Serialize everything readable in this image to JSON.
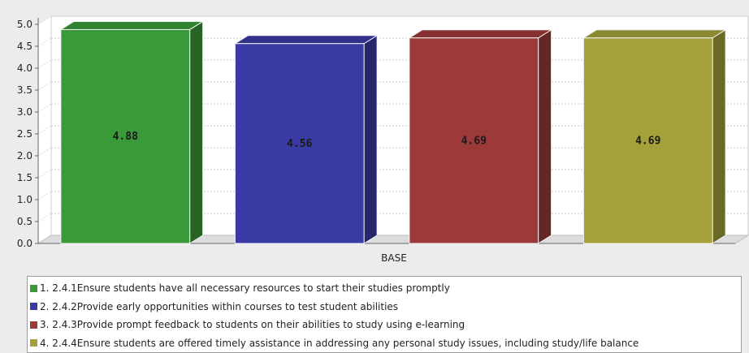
{
  "chart_data": {
    "type": "bar",
    "xlabel": "BASE",
    "ylim": [
      0,
      5
    ],
    "yticks": [
      "0.0",
      "0.5",
      "1.0",
      "1.5",
      "2.0",
      "2.5",
      "3.0",
      "3.5",
      "4.0",
      "4.5",
      "5.0"
    ],
    "grid": true,
    "legend_position": "bottom",
    "categories": [
      "BASE"
    ],
    "series": [
      {
        "name": "1. 2.4.1Ensure students have all necessary resources to start their studies promptly",
        "value": 4.88,
        "label": "4.88",
        "color": "#3a9a3a"
      },
      {
        "name": "2. 2.4.2Provide early opportunities within courses to test student abilities",
        "value": 4.56,
        "label": "4.56",
        "color": "#3a3aa4"
      },
      {
        "name": "3. 2.4.3Provide prompt feedback to students on their abilities to study using e-learning",
        "value": 4.69,
        "label": "4.69",
        "color": "#9c3a3a"
      },
      {
        "name": "4. 2.4.4Ensure students are offered timely assistance in addressing any personal study issues, including study/life balance",
        "value": 4.69,
        "label": "4.69",
        "color": "#a4a13a"
      }
    ]
  }
}
